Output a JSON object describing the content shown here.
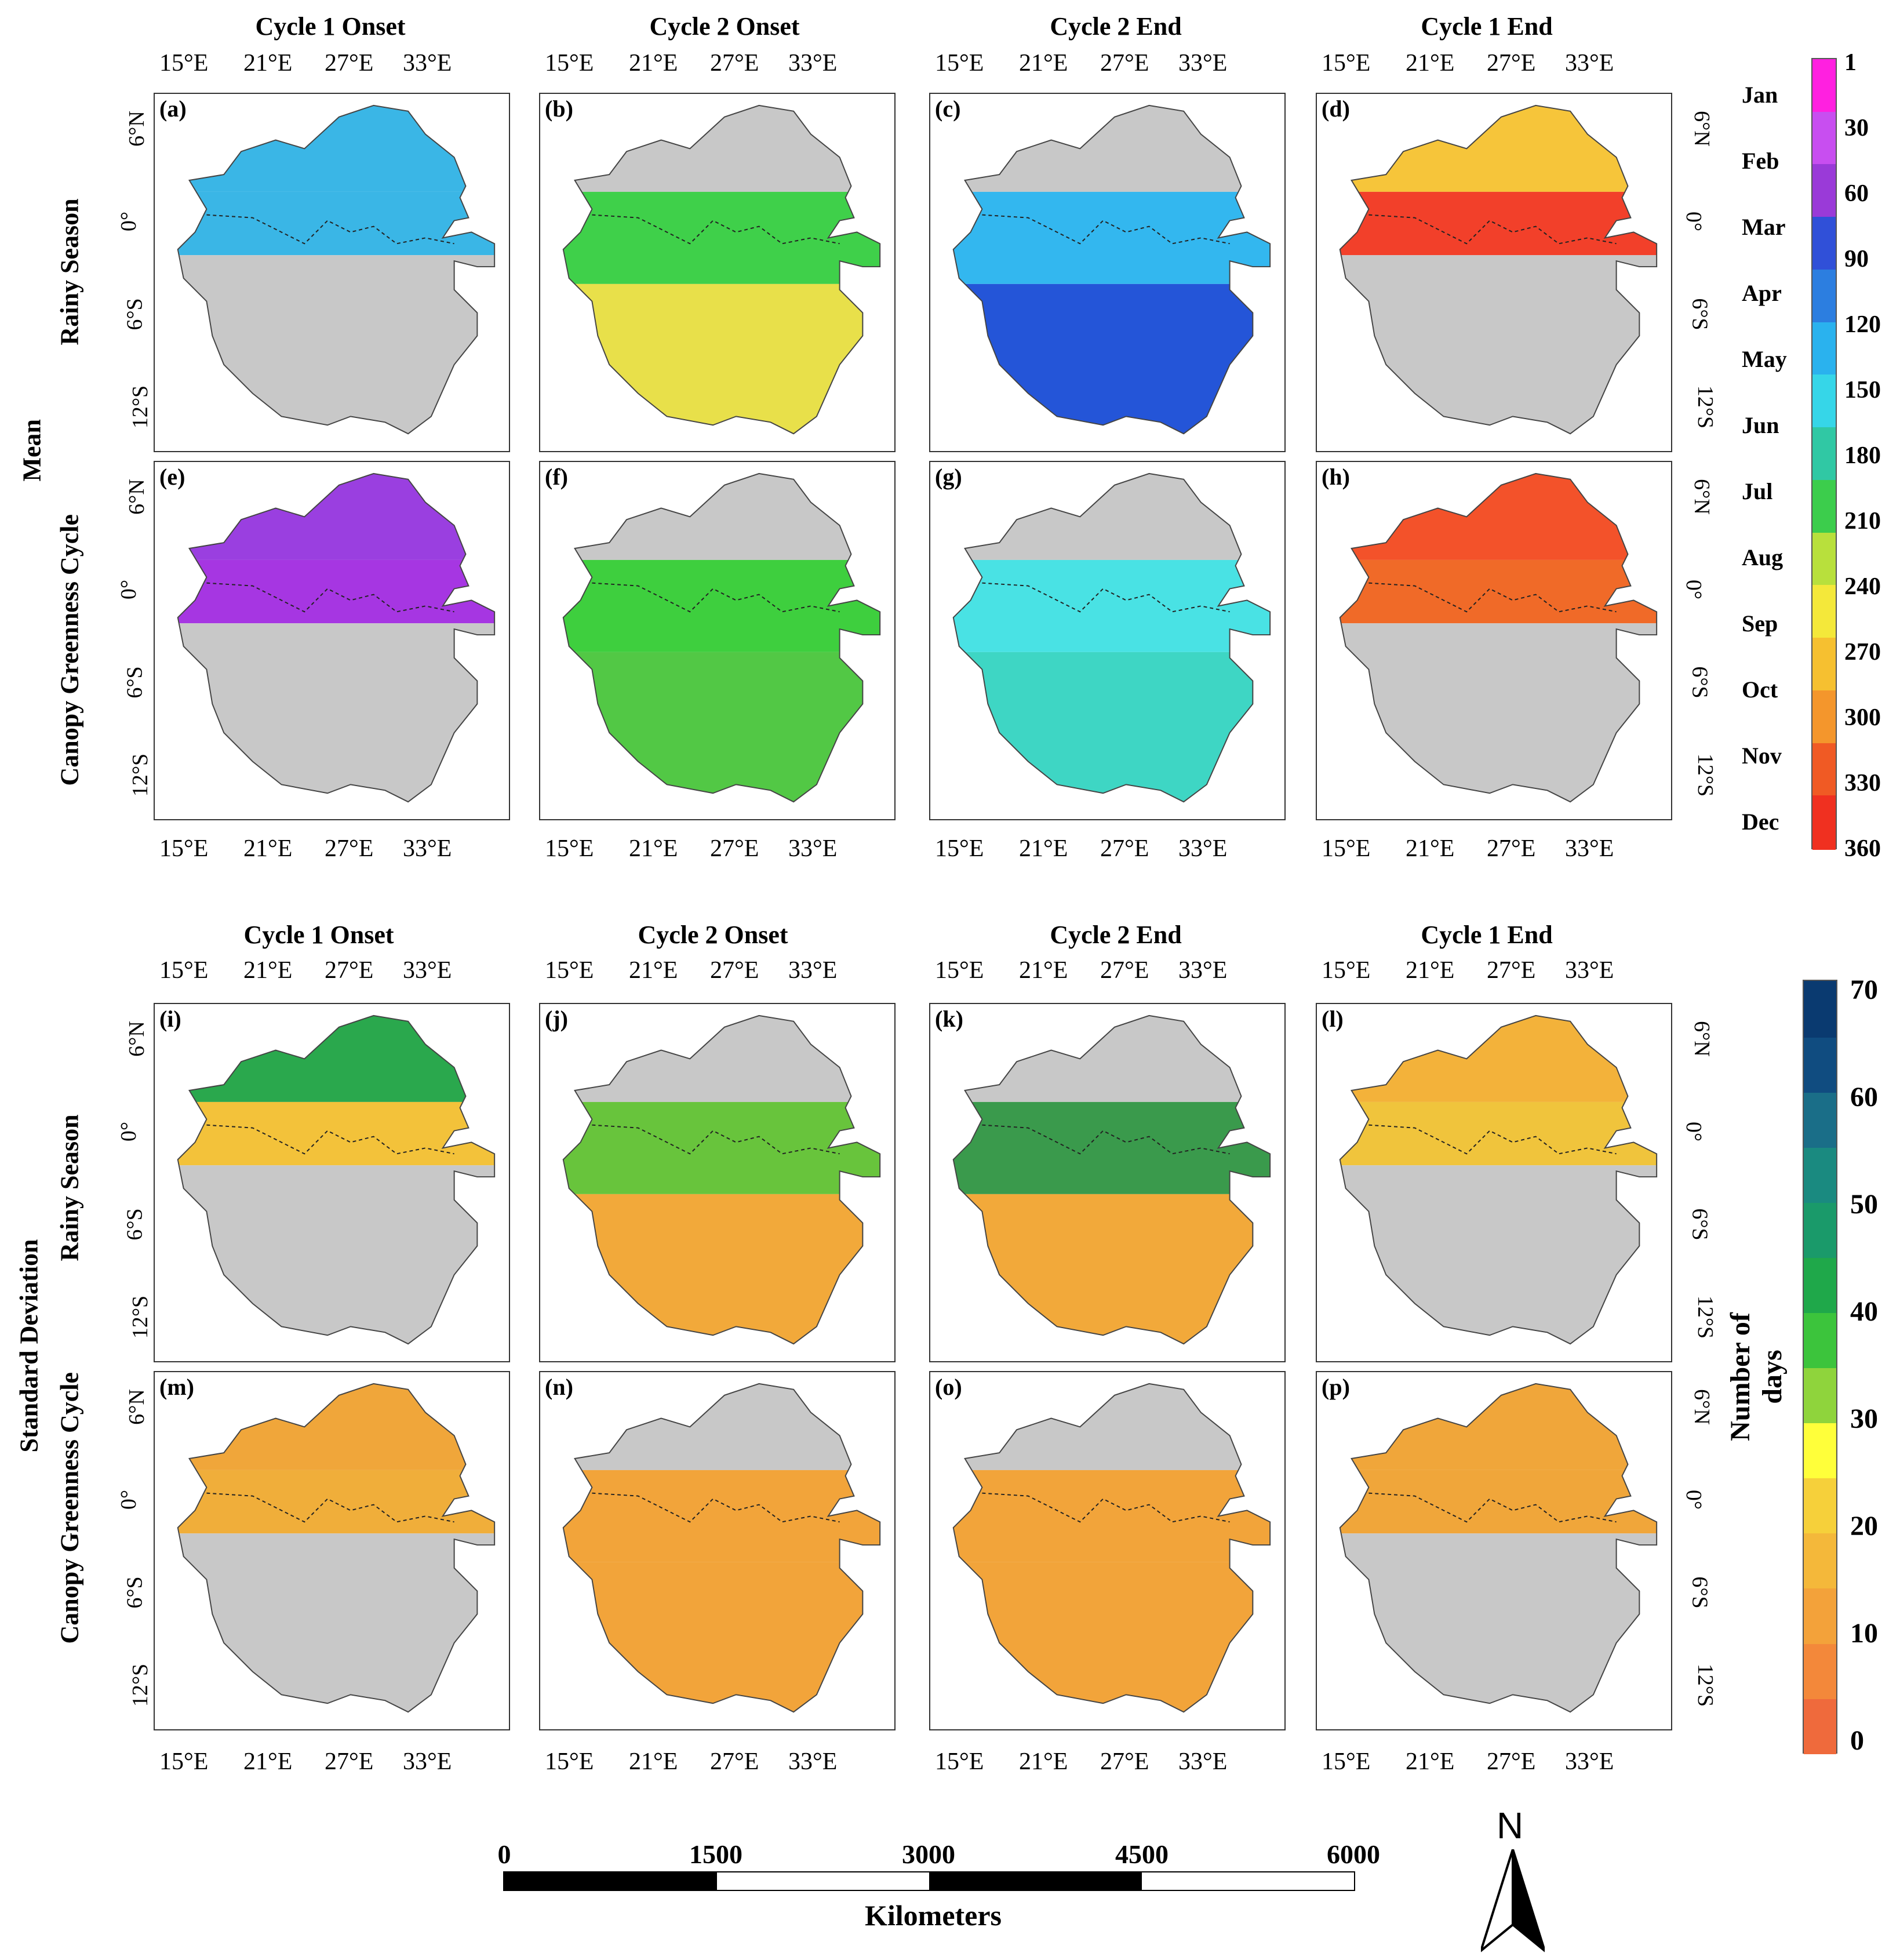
{
  "column_titles": [
    "Cycle 1 Onset",
    "Cycle 2 Onset",
    "Cycle 2 End",
    "Cycle 1 End"
  ],
  "row_group_labels": {
    "mean": "Mean",
    "sd": "Standard Deviation"
  },
  "row_labels": {
    "rainy": "Rainy Season",
    "canopy": "Canopy Greenness Cycle"
  },
  "lon_ticks": [
    "15°E",
    "21°E",
    "27°E",
    "33°E"
  ],
  "lat_ticks": [
    "6°N",
    "0°",
    "6°S",
    "12°S"
  ],
  "panel_letters": [
    "(a)",
    "(b)",
    "(c)",
    "(d)",
    "(e)",
    "(f)",
    "(g)",
    "(h)",
    "(i)",
    "(j)",
    "(k)",
    "(l)",
    "(m)",
    "(n)",
    "(o)",
    "(p)"
  ],
  "panel_fills": {
    "a": {
      "north": "#3ab6e6",
      "south": "#b23fe0",
      "south_gray": true
    },
    "b": {
      "north": "#c8c8c8",
      "mid": "#3fd04a",
      "south": "#e8e04a"
    },
    "c": {
      "north": "#c8c8c8",
      "mid": "#33b7ef",
      "south": "#2455d8"
    },
    "d": {
      "north": "#f6c53a",
      "mid": "#f2402a",
      "south_gray": true
    },
    "e": {
      "north": "#9a3fe0",
      "mid": "#a636e2",
      "south_gray": true
    },
    "f": {
      "north": "#c8c8c8",
      "mid": "#3ecf3e",
      "south": "#52c845"
    },
    "g": {
      "north": "#c8c8c8",
      "mid": "#49e2e4",
      "south": "#3ed6c4"
    },
    "h": {
      "north": "#f3522a",
      "mid": "#f06a28",
      "south_gray": true
    },
    "i": {
      "north": "#2aa84d",
      "mid": "#f3c23a",
      "south_gray": true
    },
    "j": {
      "north": "#c8c8c8",
      "mid": "#68c43c",
      "south": "#f2a93a"
    },
    "k": {
      "north": "#c8c8c8",
      "mid": "#3a9a4c",
      "south": "#f2a93a"
    },
    "l": {
      "north": "#f3b23a",
      "mid": "#f0c43c",
      "south_gray": true
    },
    "m": {
      "north": "#f0a63a",
      "mid": "#f0ae3a",
      "south_gray": true
    },
    "n": {
      "north": "#c8c8c8",
      "mid": "#f2a43a",
      "south": "#f2a43a"
    },
    "o": {
      "north": "#c8c8c8",
      "mid": "#f2a43a",
      "south": "#f2a43a"
    },
    "p": {
      "north": "#f0a63a",
      "mid": "#f0a63a",
      "south_gray": true
    }
  },
  "mean_colorbar": {
    "ticks": [
      "1",
      "30",
      "60",
      "90",
      "120",
      "150",
      "180",
      "210",
      "240",
      "270",
      "300",
      "330",
      "360"
    ],
    "months": [
      "Jan",
      "Feb",
      "Mar",
      "Apr",
      "May",
      "Jun",
      "Jul",
      "Aug",
      "Sep",
      "Oct",
      "Nov",
      "Dec"
    ],
    "colors": [
      "#ff20e0",
      "#c84ef0",
      "#9a3ad8",
      "#3050d8",
      "#2c7ee0",
      "#2ab2ee",
      "#36d6e8",
      "#30c8a4",
      "#3ccd4c",
      "#b8e03c",
      "#f4e83a",
      "#f6c030",
      "#f4962c",
      "#f05a24",
      "#f03020"
    ]
  },
  "sd_colorbar": {
    "title": "Number of days",
    "ticks": [
      "70",
      "60",
      "50",
      "40",
      "30",
      "20",
      "10",
      "0"
    ],
    "colors": [
      "#ef6a3c",
      "#f3883a",
      "#f3a23a",
      "#f4b83a",
      "#f6d03a",
      "#ffff3a",
      "#8fd43c",
      "#3cc43c",
      "#1fa84a",
      "#1a9a6a",
      "#1a8a80",
      "#1a6e88",
      "#104c80",
      "#0a3a70"
    ]
  },
  "scale_bar": {
    "title": "Kilometers",
    "ticks": [
      "0",
      "1500",
      "3000",
      "4500",
      "6000"
    ]
  },
  "north_arrow": {
    "label": "N"
  }
}
